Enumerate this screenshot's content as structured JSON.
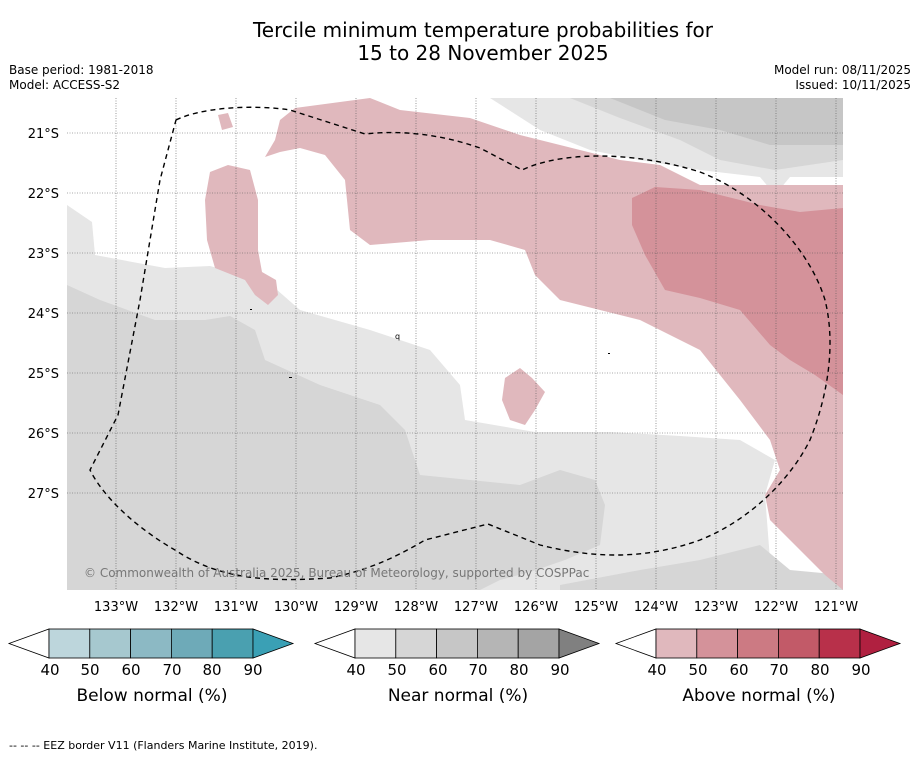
{
  "title_line1": "Tercile minimum temperature probabilities for",
  "title_line2": "15 to 28 November 2025",
  "base_period": "Base period: 1981-2018",
  "model": "Model: ACCESS-S2",
  "model_run": "Model run: 08/11/2025",
  "issued": "Issued: 10/11/2025",
  "copyright": "© Commonwealth of Australia 2025, Bureau of Meteorology, supported by COSPPac",
  "lat_labels": [
    "21°S",
    "22°S",
    "23°S",
    "24°S",
    "25°S",
    "26°S",
    "27°S"
  ],
  "lon_labels": [
    "133°W",
    "132°W",
    "131°W",
    "130°W",
    "129°W",
    "128°W",
    "127°W",
    "126°W",
    "125°W",
    "124°W",
    "123°W",
    "122°W",
    "121°W"
  ],
  "colorbars": [
    {
      "title": "Below normal (%)",
      "ticks": [
        "40",
        "50",
        "60",
        "70",
        "80",
        "90"
      ],
      "colors": [
        "#ffffff",
        "#bdd6dc",
        "#a6c8cf",
        "#8cb9c4",
        "#6eaab8",
        "#4aa0b0",
        "#3aa0b5"
      ]
    },
    {
      "title": "Near normal (%)",
      "ticks": [
        "40",
        "50",
        "60",
        "70",
        "80",
        "90"
      ],
      "colors": [
        "#ffffff",
        "#e6e6e6",
        "#d6d6d6",
        "#c6c6c6",
        "#b5b5b5",
        "#a4a4a4",
        "#808080"
      ]
    },
    {
      "title": "Above normal (%)",
      "ticks": [
        "40",
        "50",
        "60",
        "70",
        "80",
        "90"
      ],
      "colors": [
        "#ffffff",
        "#e0b8bd",
        "#d4929a",
        "#cc7a83",
        "#c25a68",
        "#b8304a",
        "#b02040"
      ]
    }
  ],
  "footer": "--  --  -- EEZ border V11 (Flanders Marine Institute, 2019).",
  "colors": {
    "near_light": "#e6e6e6",
    "near_mid": "#d6d6d6",
    "near_dark": "#c6c6c6",
    "above_light": "#e0b8bd",
    "above_mid": "#d4929a"
  }
}
